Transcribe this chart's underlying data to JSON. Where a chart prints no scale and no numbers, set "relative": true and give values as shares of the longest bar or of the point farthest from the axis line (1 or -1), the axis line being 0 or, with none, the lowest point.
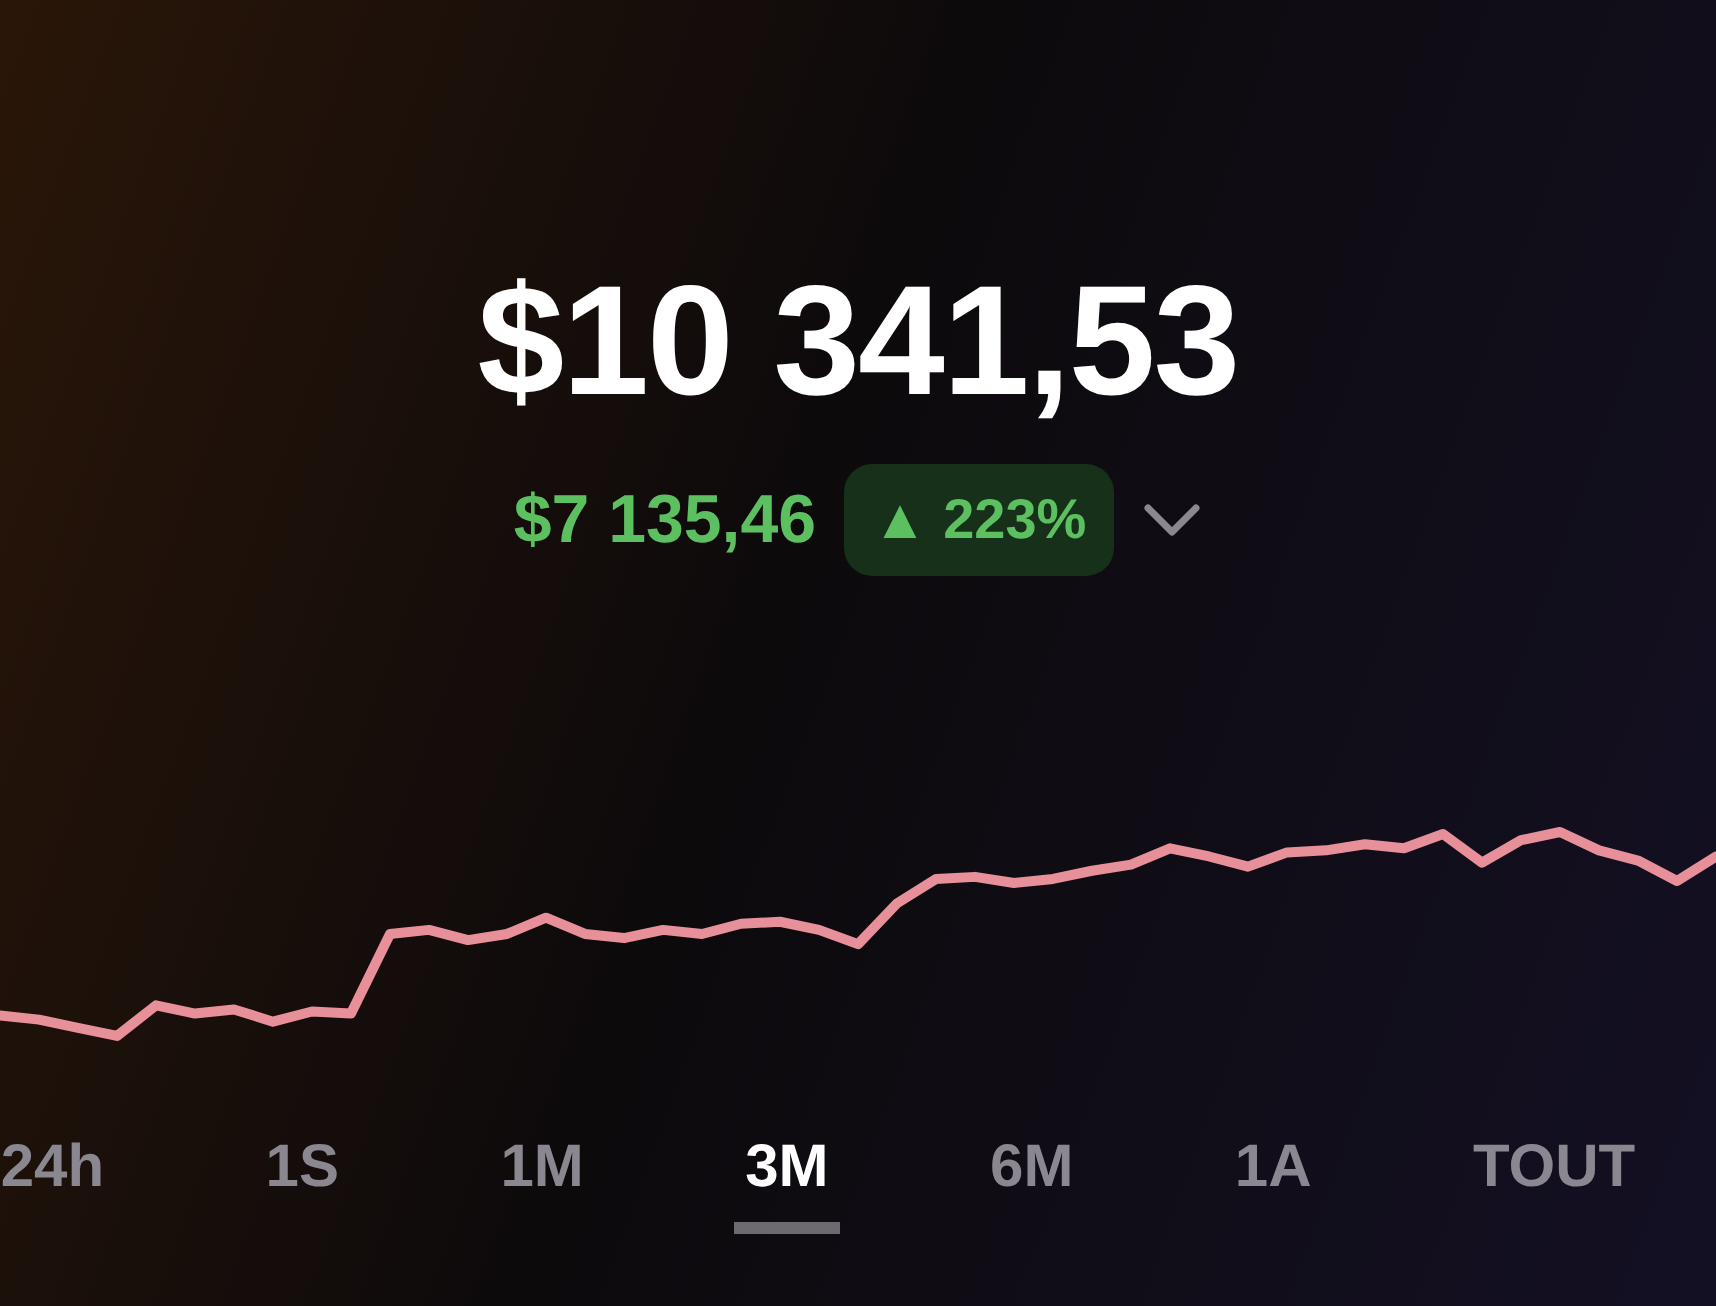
{
  "chart_data": {
    "type": "line",
    "relative": true,
    "title": "$10 341,53",
    "annotations": [
      "$7 135,46",
      "▲ 223%",
      "24h",
      "1S",
      "1M",
      "3M",
      "6M",
      "1A",
      "TOUT"
    ],
    "categories": [
      null,
      null,
      null,
      null,
      null,
      null,
      null,
      null,
      null,
      null,
      null,
      null,
      null,
      null,
      null,
      null,
      null,
      null,
      null,
      null,
      null,
      null,
      null,
      null,
      null,
      null,
      null,
      null,
      null,
      null,
      null,
      null,
      null,
      null,
      null,
      null,
      null,
      null,
      null,
      null,
      null,
      null,
      null,
      null,
      null
    ],
    "series": [
      {
        "color": "#e8909a",
        "values": [
          0.1,
          0.08,
          0.04,
          0,
          0.15,
          0.11,
          0.13,
          0.07,
          0.12,
          0.11,
          0.5,
          0.52,
          0.47,
          0.5,
          0.58,
          0.5,
          0.48,
          0.52,
          0.5,
          0.55,
          0.56,
          0.52,
          0.45,
          0.65,
          0.77,
          0.78,
          0.75,
          0.77,
          0.81,
          0.84,
          0.92,
          0.88,
          0.83,
          0.9,
          0.91,
          0.94,
          0.92,
          0.99,
          0.85,
          0.96,
          1,
          0.91,
          0.86,
          0.76,
          0.88
        ]
      }
    ],
    "legend": false,
    "marker": "none",
    "line_style": "solid"
  }
}
